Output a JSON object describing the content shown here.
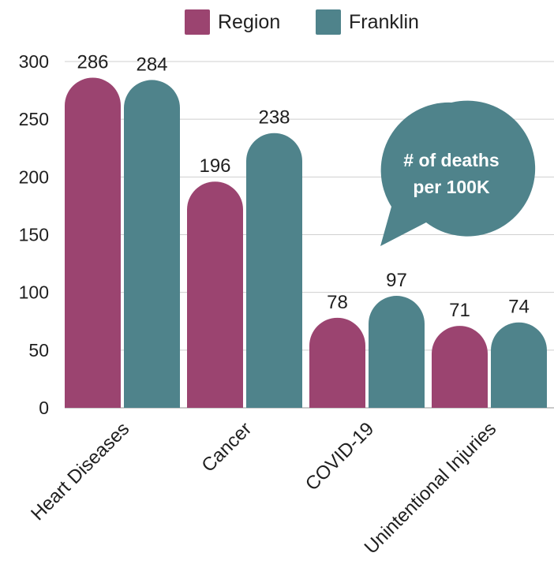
{
  "chart_data": {
    "type": "bar",
    "categories": [
      "Heart Diseases",
      "Cancer",
      "COVID-19",
      "Unintentional Injuries"
    ],
    "series": [
      {
        "name": "Region",
        "values": [
          286,
          196,
          78,
          71
        ],
        "color": "#9b4470"
      },
      {
        "name": "Franklin",
        "values": [
          284,
          238,
          97,
          74
        ],
        "color": "#4f838b"
      }
    ],
    "ylim": [
      0,
      300
    ],
    "yticks": [
      0,
      50,
      100,
      150,
      200,
      250,
      300
    ],
    "grid": true,
    "legend_position": "top-center",
    "annotation": "# of deaths\nper 100K",
    "annotation_color": "#4f838b"
  }
}
